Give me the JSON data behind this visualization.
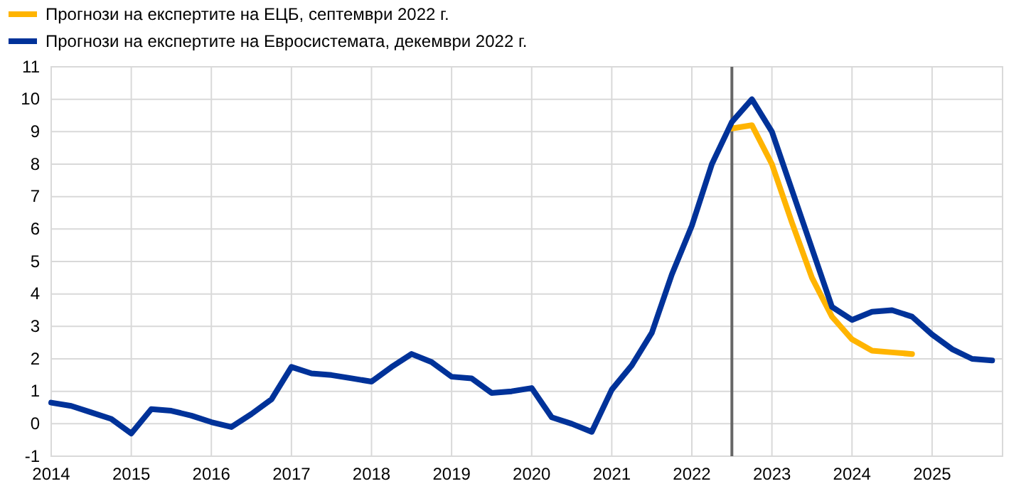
{
  "chart_data": {
    "type": "line",
    "xlim": [
      2014,
      2025.88
    ],
    "xticks": [
      2014,
      2015,
      2016,
      2017,
      2018,
      2019,
      2020,
      2021,
      2022,
      2023,
      2024,
      2025
    ],
    "ylim": [
      -1,
      11
    ],
    "yticks": [
      -1,
      0,
      1,
      2,
      3,
      4,
      5,
      6,
      7,
      8,
      9,
      10,
      11
    ],
    "grid": true,
    "legend": "top left",
    "ref_lines": [
      {
        "axis": "x",
        "value": 2022.5,
        "color": "#666666"
      }
    ],
    "series": [
      {
        "name": "Прогнози на експертите на ЕЦБ, септември 2022 г.",
        "color": "#ffb400",
        "x": [
          2022.5,
          2022.75,
          2023,
          2023.25,
          2023.5,
          2023.75,
          2024,
          2024.25,
          2024.5,
          2024.75
        ],
        "values": [
          9.1,
          9.2,
          8.0,
          6.2,
          4.5,
          3.3,
          2.6,
          2.25,
          2.2,
          2.15
        ]
      },
      {
        "name": "Прогнози на експертите на Евросистемата, декември 2022 г.",
        "color": "#003299",
        "x": [
          2014,
          2014.25,
          2014.5,
          2014.75,
          2015,
          2015.25,
          2015.5,
          2015.75,
          2016,
          2016.25,
          2016.5,
          2016.75,
          2017,
          2017.25,
          2017.5,
          2017.75,
          2018,
          2018.25,
          2018.5,
          2018.75,
          2019,
          2019.25,
          2019.5,
          2019.75,
          2020,
          2020.25,
          2020.5,
          2020.75,
          2021,
          2021.25,
          2021.5,
          2021.75,
          2022,
          2022.25,
          2022.5,
          2022.75,
          2023,
          2023.25,
          2023.5,
          2023.75,
          2024,
          2024.25,
          2024.5,
          2024.75,
          2025,
          2025.25,
          2025.5,
          2025.75
        ],
        "values": [
          0.65,
          0.55,
          0.35,
          0.15,
          -0.3,
          0.45,
          0.4,
          0.25,
          0.05,
          -0.1,
          0.3,
          0.75,
          1.75,
          1.55,
          1.5,
          1.4,
          1.3,
          1.75,
          2.15,
          1.9,
          1.45,
          1.4,
          0.95,
          1.0,
          1.1,
          0.2,
          0.0,
          -0.25,
          1.05,
          1.8,
          2.8,
          4.6,
          6.1,
          8.0,
          9.3,
          10.0,
          9.0,
          7.2,
          5.4,
          3.6,
          3.2,
          3.45,
          3.5,
          3.3,
          2.75,
          2.3,
          2.0,
          1.95
        ]
      }
    ]
  }
}
